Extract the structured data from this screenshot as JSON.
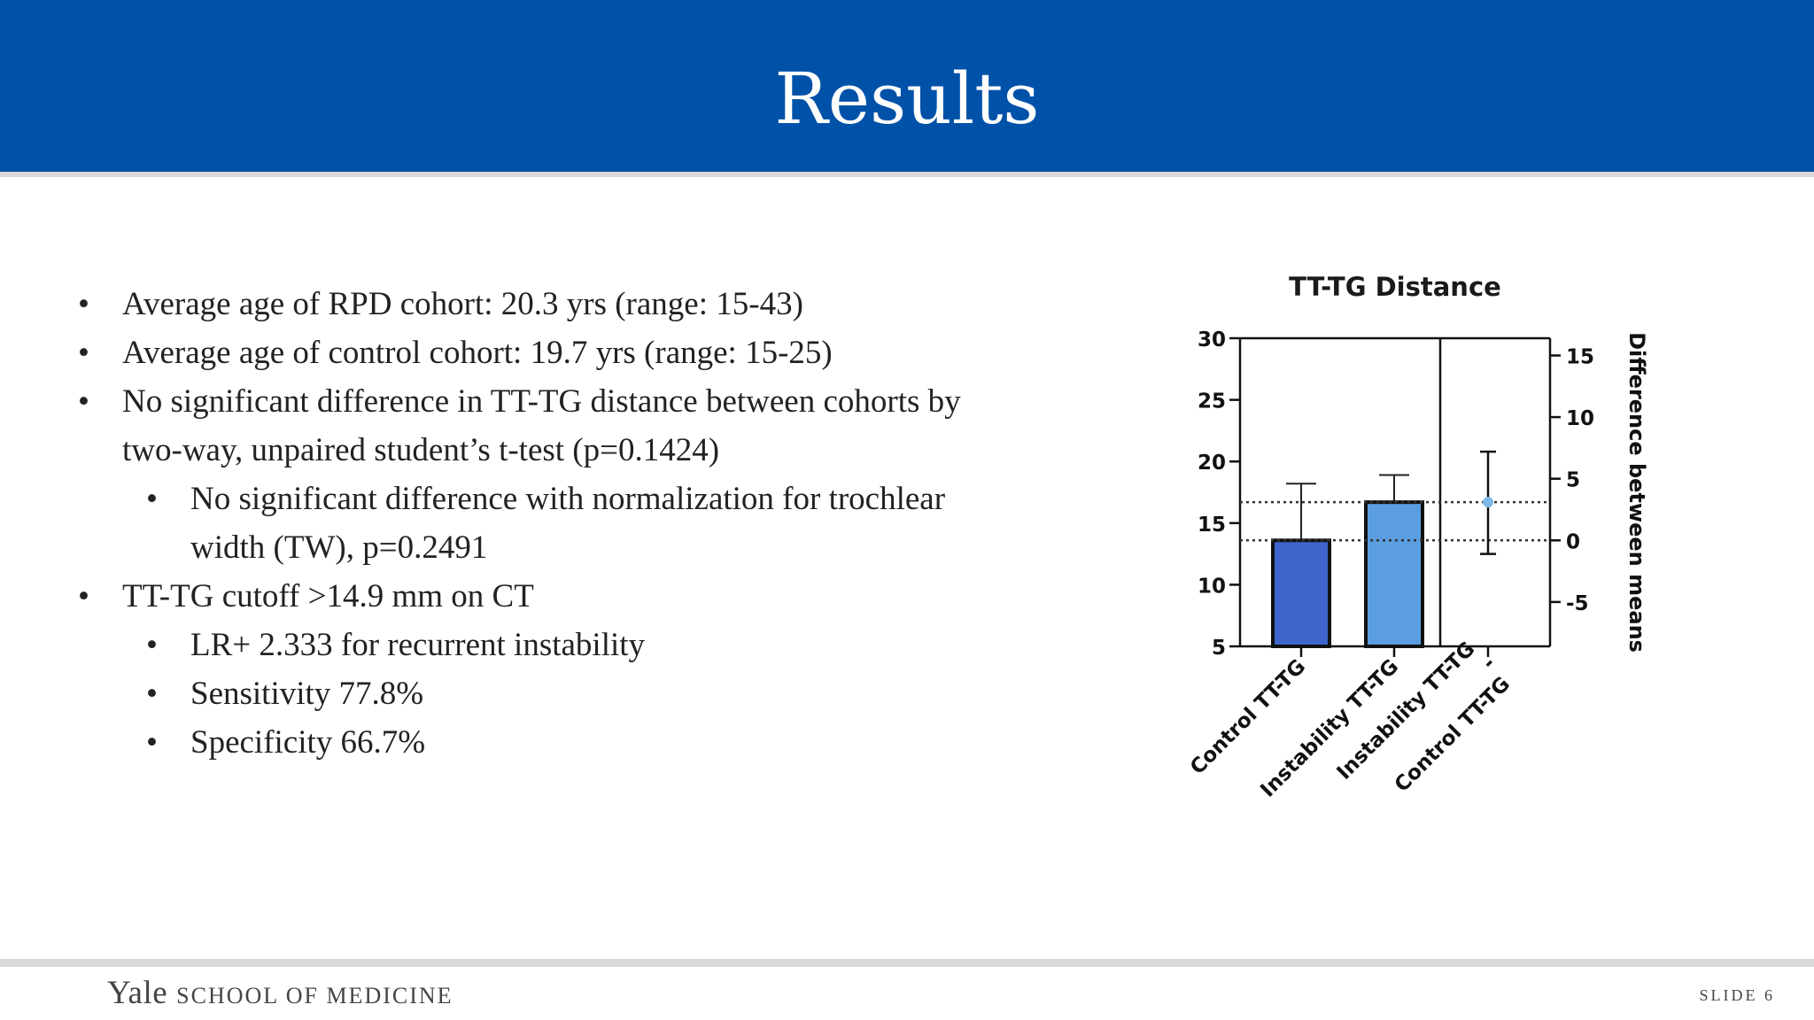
{
  "slide": {
    "title": "Results",
    "number_label": "SLIDE 6"
  },
  "bullets": [
    {
      "level": 1,
      "marker": "•",
      "lines": [
        "Average age of RPD cohort: 20.3 yrs (range: 15-43)"
      ]
    },
    {
      "level": 1,
      "marker": "•",
      "lines": [
        "Average age of control cohort: 19.7 yrs (range: 15-25)"
      ]
    },
    {
      "level": 1,
      "marker": "•",
      "lines": [
        "No significant difference in TT-TG distance between cohorts by",
        "two-way, unpaired student’s t-test (p=0.1424)"
      ]
    },
    {
      "level": 2,
      "marker": "•",
      "lines": [
        "No significant difference with normalization for trochlear",
        "width (TW), p=0.2491"
      ]
    },
    {
      "level": 1,
      "marker": "•",
      "lines": [
        "TT-TG cutoff >14.9 mm on CT"
      ]
    },
    {
      "level": 2,
      "marker": "•",
      "lines": [
        "LR+ 2.333 for recurrent instability"
      ]
    },
    {
      "level": 2,
      "marker": "•",
      "lines": [
        "Sensitivity 77.8%"
      ]
    },
    {
      "level": 2,
      "marker": "•",
      "lines": [
        "Specificity 66.7%"
      ]
    }
  ],
  "footer": {
    "logo_yale": "Yale",
    "logo_school": "SCHOOL OF MEDICINE"
  },
  "chart_data": {
    "type": "bar",
    "title": "TT-TG Distance",
    "categories": [
      "Control TT-TG",
      "Instability TT-TG"
    ],
    "values": [
      13.6,
      16.7
    ],
    "error_upper": [
      18.2,
      18.9
    ],
    "ylim": [
      5,
      30
    ],
    "yticks": [
      5,
      10,
      15,
      20,
      25,
      30
    ],
    "bar_colors": [
      "#3f66cc",
      "#5b9ee0"
    ],
    "difference": {
      "label_lines": [
        "Instability TT-TG",
        "-",
        "Control TT-TG"
      ],
      "value": 3.1,
      "ci_low": -1.1,
      "ci_high": 7.2,
      "point_color": "#7fb8e6"
    },
    "y2label": "Difference between means",
    "y2ticks": [
      -5,
      0,
      5,
      10,
      15
    ],
    "y2_zero_at": 13.6,
    "reference_lines": [
      13.6,
      16.7
    ],
    "grid": false
  }
}
